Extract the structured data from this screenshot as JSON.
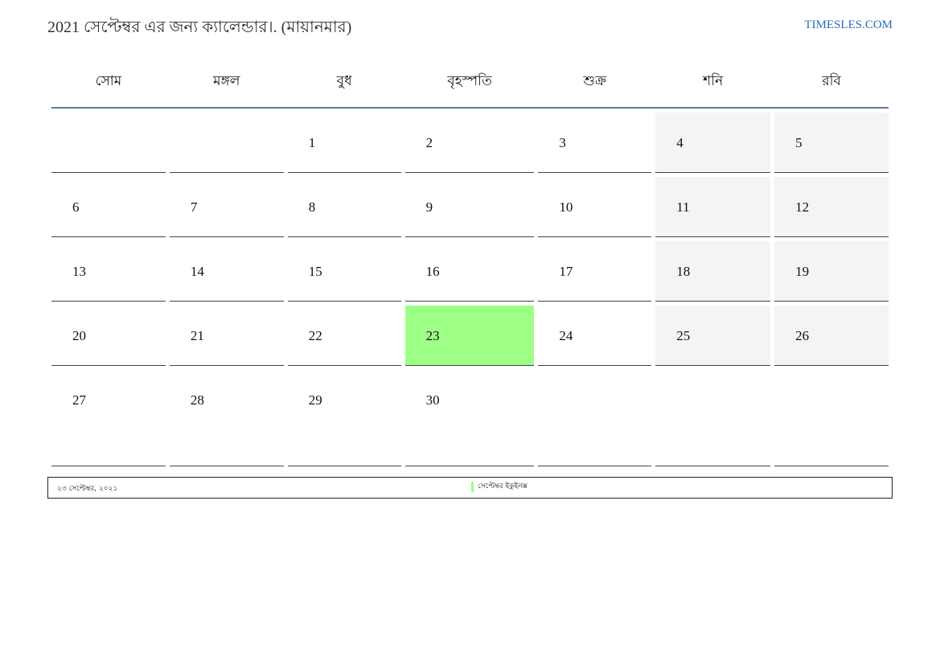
{
  "header": {
    "title": "2021 সেপ্টেম্বর এর জন্য ক্যালেন্ডার।. (মায়ানমার)",
    "site": "TIMESLES.COM"
  },
  "weekdays": [
    "সোম",
    "মঙ্গল",
    "বুধ",
    "বৃহস্পতি",
    "শুক্র",
    "শনি",
    "রবি"
  ],
  "weeks": [
    [
      "",
      "",
      "1",
      "2",
      "3",
      "4",
      "5"
    ],
    [
      "6",
      "7",
      "8",
      "9",
      "10",
      "11",
      "12"
    ],
    [
      "13",
      "14",
      "15",
      "16",
      "17",
      "18",
      "19"
    ],
    [
      "20",
      "21",
      "22",
      "23",
      "24",
      "25",
      "26"
    ],
    [
      "27",
      "28",
      "29",
      "30",
      "",
      "",
      ""
    ]
  ],
  "highlighted_day": "23",
  "colors": {
    "highlight": "#9eff86",
    "weekend": "#f4f4f4",
    "accent": "#5a7aa0"
  },
  "footer": {
    "date": "২৩ সেপ্টেম্বর, ২০২১",
    "event": "সেপ্টেম্বর ইকুইনক্স"
  }
}
